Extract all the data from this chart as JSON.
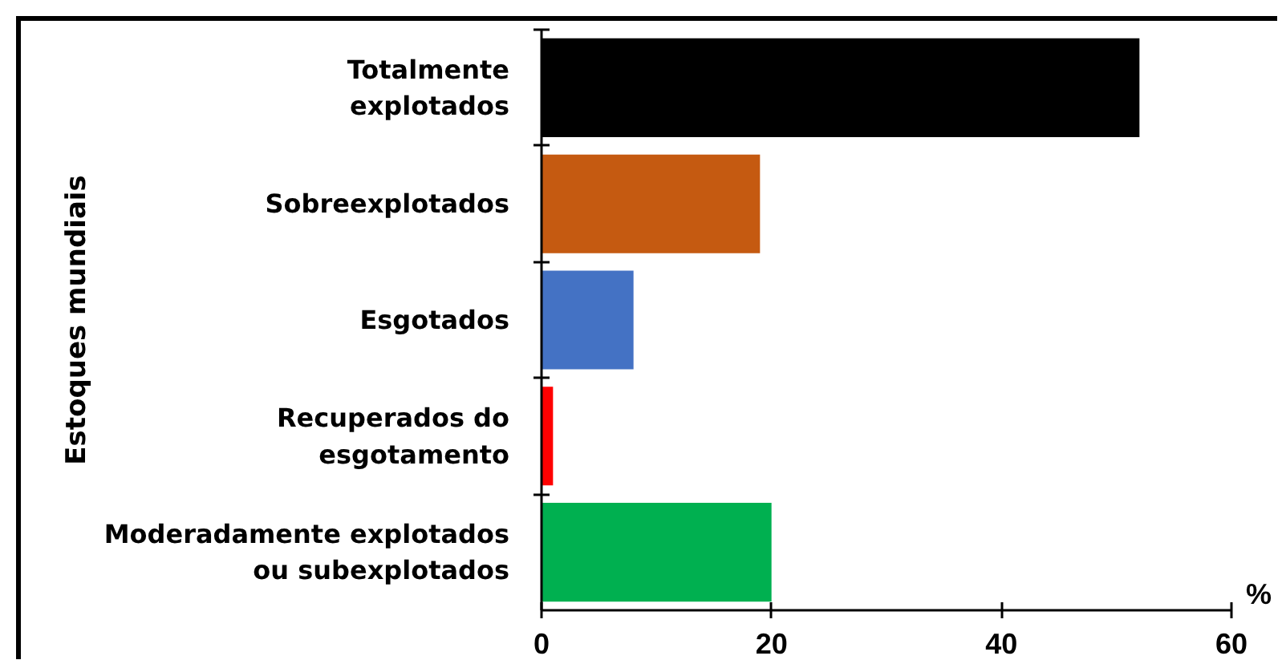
{
  "chart_data": {
    "type": "bar",
    "orientation": "horizontal",
    "ylabel": "Estoques mundiais",
    "xlabel": "%",
    "categories": [
      "Totalmente\nexplotados",
      "Sobreexplotados",
      "Esgotados",
      "Recuperados do\nesgotamento",
      "Moderadamente explotados\nou subexplotados"
    ],
    "values": [
      52,
      19,
      8,
      1,
      20
    ],
    "colors": [
      "#000000",
      "#c55a11",
      "#4472c4",
      "#ff0000",
      "#00b050"
    ],
    "xlim": [
      0,
      60
    ],
    "xticks": [
      0,
      20,
      40,
      60
    ],
    "grid": false
  }
}
